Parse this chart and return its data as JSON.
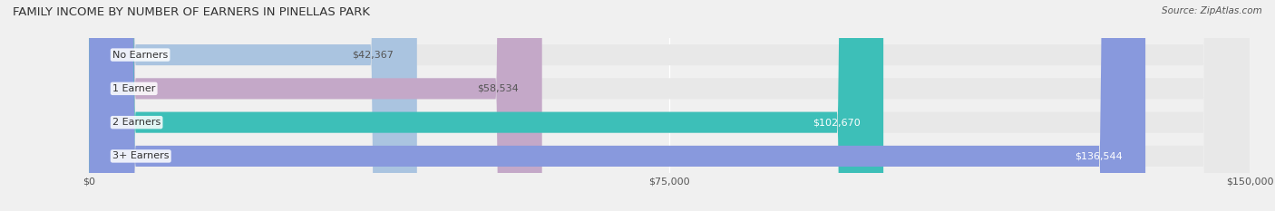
{
  "title": "FAMILY INCOME BY NUMBER OF EARNERS IN PINELLAS PARK",
  "source": "Source: ZipAtlas.com",
  "categories": [
    "No Earners",
    "1 Earner",
    "2 Earners",
    "3+ Earners"
  ],
  "values": [
    42367,
    58534,
    102670,
    136544
  ],
  "bar_colors": [
    "#aac4e0",
    "#c4a8c8",
    "#3dbfb8",
    "#8899dd"
  ],
  "label_colors": [
    "#555555",
    "#555555",
    "#ffffff",
    "#ffffff"
  ],
  "value_labels": [
    "$42,367",
    "$58,534",
    "$102,670",
    "$136,544"
  ],
  "xlim": [
    0,
    150000
  ],
  "xticks": [
    0,
    75000,
    150000
  ],
  "xtick_labels": [
    "$0",
    "$75,000",
    "$150,000"
  ],
  "background_color": "#f0f0f0",
  "bar_background_color": "#e8e8e8",
  "bar_height": 0.62,
  "figsize": [
    14.06,
    2.33
  ],
  "dpi": 100
}
